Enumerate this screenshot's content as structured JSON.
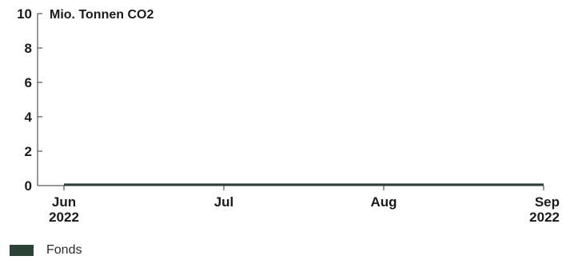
{
  "chart_data": {
    "type": "area",
    "ylabel": "Mio. Tonnen CO2",
    "ylim": [
      0,
      10
    ],
    "y_ticks": [
      "0",
      "2",
      "4",
      "6",
      "8",
      "10"
    ],
    "x_ticks": [
      {
        "line1": "Jun",
        "line2": "2022"
      },
      {
        "line1": "Jul",
        "line2": ""
      },
      {
        "line1": "Aug",
        "line2": ""
      },
      {
        "line1": "Sep",
        "line2": "2022"
      }
    ],
    "series": [
      {
        "name": "Fonds",
        "color": "#2d4237",
        "x": [
          "Jun 2022",
          "Jul 2022",
          "Aug 2022",
          "Sep 2022"
        ],
        "values": [
          0.05,
          0.05,
          0.05,
          0.05
        ]
      }
    ],
    "grid": false,
    "legend_position": "bottom-left"
  },
  "legend": {
    "label": "Fonds",
    "color": "#2d4237"
  }
}
